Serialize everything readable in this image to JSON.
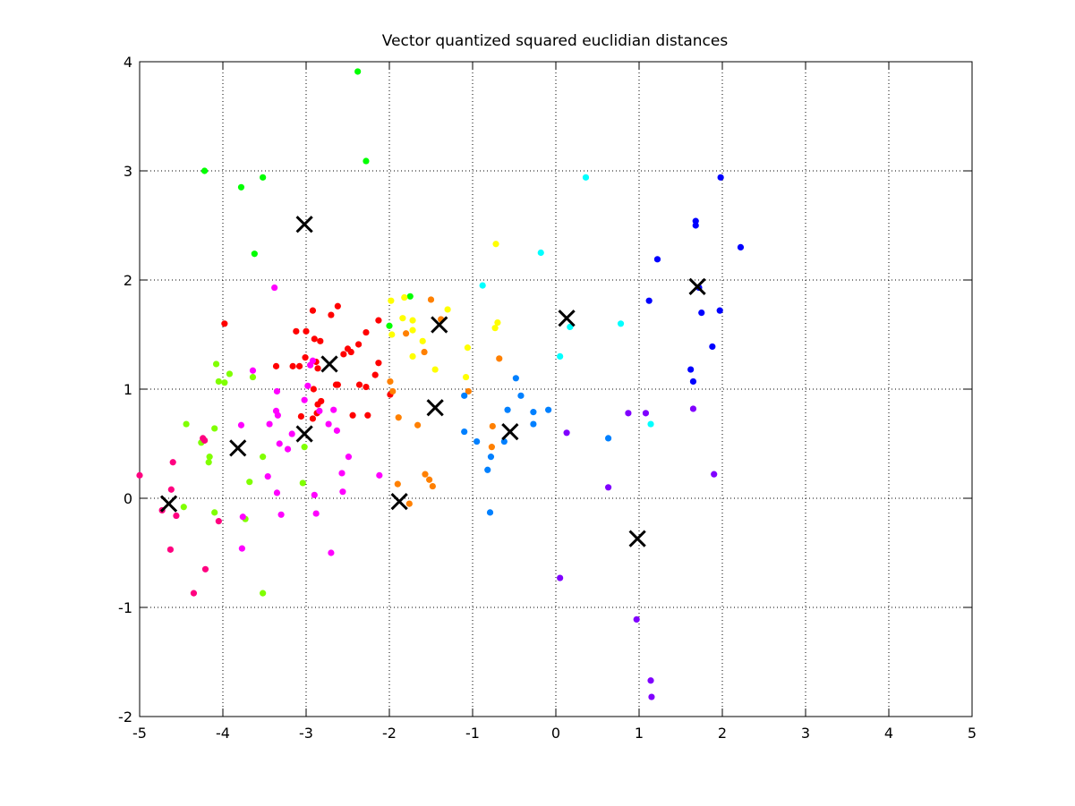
{
  "chart_data": {
    "type": "scatter",
    "title": "Vector quantized squared euclidian distances",
    "xlabel": "",
    "ylabel": "",
    "xlim": [
      -5,
      5
    ],
    "ylim": [
      -2,
      4
    ],
    "xticks": [
      "-5",
      "-4",
      "-3",
      "-2",
      "-1",
      "0",
      "1",
      "2",
      "3",
      "4",
      "5"
    ],
    "yticks": [
      "-2",
      "-1",
      "0",
      "1",
      "2",
      "3",
      "4"
    ],
    "grid": true,
    "grid_style": "dotted",
    "legend": "none",
    "series": [
      {
        "color": "#00ff00",
        "points": [
          [
            -2.38,
            3.91
          ],
          [
            -2.28,
            3.09
          ],
          [
            -4.22,
            3.0
          ],
          [
            -3.52,
            2.94
          ],
          [
            -3.78,
            2.85
          ],
          [
            -3.62,
            2.24
          ],
          [
            -1.75,
            1.85
          ],
          [
            -2.0,
            1.58
          ]
        ]
      },
      {
        "color": "#80ff00",
        "points": [
          [
            -4.08,
            1.23
          ],
          [
            -3.92,
            1.14
          ],
          [
            -4.05,
            1.07
          ],
          [
            -3.98,
            1.06
          ],
          [
            -3.64,
            1.11
          ],
          [
            -4.44,
            0.68
          ],
          [
            -4.1,
            0.64
          ],
          [
            -4.26,
            0.51
          ],
          [
            -4.22,
            0.53
          ],
          [
            -4.16,
            0.38
          ],
          [
            -4.17,
            0.33
          ],
          [
            -3.52,
            0.38
          ],
          [
            -3.68,
            0.15
          ],
          [
            -3.02,
            0.47
          ],
          [
            -3.04,
            0.14
          ],
          [
            -4.47,
            -0.08
          ],
          [
            -4.1,
            -0.13
          ],
          [
            -3.73,
            -0.19
          ],
          [
            -3.52,
            -0.87
          ]
        ]
      },
      {
        "color": "#ff0000",
        "points": [
          [
            -3.98,
            1.6
          ],
          [
            -2.92,
            1.72
          ],
          [
            -2.62,
            1.76
          ],
          [
            -2.7,
            1.68
          ],
          [
            -2.13,
            1.63
          ],
          [
            -3.12,
            1.53
          ],
          [
            -3.0,
            1.53
          ],
          [
            -2.9,
            1.46
          ],
          [
            -2.83,
            1.44
          ],
          [
            -2.28,
            1.52
          ],
          [
            -2.37,
            1.41
          ],
          [
            -2.5,
            1.37
          ],
          [
            -2.55,
            1.32
          ],
          [
            -2.46,
            1.34
          ],
          [
            -3.01,
            1.29
          ],
          [
            -2.88,
            1.25
          ],
          [
            -3.36,
            1.21
          ],
          [
            -3.16,
            1.21
          ],
          [
            -3.08,
            1.21
          ],
          [
            -2.86,
            1.19
          ],
          [
            -2.64,
            1.04
          ],
          [
            -2.62,
            1.04
          ],
          [
            -2.36,
            1.04
          ],
          [
            -2.28,
            1.02
          ],
          [
            -2.17,
            1.13
          ],
          [
            -2.13,
            1.24
          ],
          [
            -2.91,
            1.0
          ],
          [
            -2.86,
            0.86
          ],
          [
            -2.82,
            0.89
          ],
          [
            -2.87,
            0.78
          ],
          [
            -2.92,
            0.73
          ],
          [
            -3.06,
            0.75
          ],
          [
            -2.44,
            0.76
          ],
          [
            -2.26,
            0.76
          ],
          [
            -1.99,
            0.95
          ]
        ]
      },
      {
        "color": "#ff00ff",
        "points": [
          [
            -3.38,
            1.93
          ],
          [
            -3.64,
            1.17
          ],
          [
            -2.92,
            1.26
          ],
          [
            -2.95,
            1.22
          ],
          [
            -2.98,
            1.03
          ],
          [
            -3.35,
            0.98
          ],
          [
            -3.02,
            0.9
          ],
          [
            -3.36,
            0.8
          ],
          [
            -3.34,
            0.76
          ],
          [
            -2.84,
            0.8
          ],
          [
            -2.67,
            0.81
          ],
          [
            -2.73,
            0.68
          ],
          [
            -3.78,
            0.67
          ],
          [
            -3.44,
            0.68
          ],
          [
            -2.63,
            0.62
          ],
          [
            -3.17,
            0.59
          ],
          [
            -3.32,
            0.5
          ],
          [
            -3.22,
            0.45
          ],
          [
            -2.49,
            0.38
          ],
          [
            -2.57,
            0.23
          ],
          [
            -2.12,
            0.21
          ],
          [
            -3.46,
            0.2
          ],
          [
            -3.35,
            0.05
          ],
          [
            -2.9,
            0.03
          ],
          [
            -2.56,
            0.06
          ],
          [
            -3.76,
            -0.17
          ],
          [
            -3.3,
            -0.15
          ],
          [
            -2.88,
            -0.14
          ],
          [
            -3.77,
            -0.46
          ],
          [
            -2.7,
            -0.5
          ]
        ]
      },
      {
        "color": "#ff0080",
        "points": [
          [
            -5.0,
            0.21
          ],
          [
            -4.6,
            0.33
          ],
          [
            -4.62,
            0.08
          ],
          [
            -4.56,
            -0.16
          ],
          [
            -4.73,
            -0.11
          ],
          [
            -4.63,
            -0.47
          ],
          [
            -4.05,
            -0.21
          ],
          [
            -4.21,
            -0.65
          ],
          [
            -4.35,
            -0.87
          ],
          [
            -4.22,
            0.53
          ],
          [
            -4.24,
            0.55
          ]
        ]
      },
      {
        "color": "#ffff00",
        "points": [
          [
            -1.98,
            1.81
          ],
          [
            -1.82,
            1.84
          ],
          [
            -1.84,
            1.65
          ],
          [
            -1.72,
            1.63
          ],
          [
            -1.97,
            1.5
          ],
          [
            -1.72,
            1.54
          ],
          [
            -1.6,
            1.44
          ],
          [
            -1.3,
            1.73
          ],
          [
            -1.45,
            1.18
          ],
          [
            -1.72,
            1.3
          ],
          [
            -1.06,
            1.38
          ],
          [
            -1.08,
            1.11
          ],
          [
            -0.72,
            2.33
          ],
          [
            -0.7,
            1.61
          ],
          [
            -0.73,
            1.56
          ]
        ]
      },
      {
        "color": "#ff8000",
        "points": [
          [
            -1.5,
            1.82
          ],
          [
            -1.38,
            1.64
          ],
          [
            -1.58,
            1.34
          ],
          [
            -1.8,
            1.51
          ],
          [
            -1.99,
            1.07
          ],
          [
            -1.96,
            0.98
          ],
          [
            -1.05,
            0.98
          ],
          [
            -1.89,
            0.74
          ],
          [
            -1.66,
            0.67
          ],
          [
            -1.57,
            0.22
          ],
          [
            -1.52,
            0.17
          ],
          [
            -1.48,
            0.11
          ],
          [
            -1.9,
            0.13
          ],
          [
            -1.76,
            -0.05
          ],
          [
            -0.76,
            0.66
          ],
          [
            -0.77,
            0.47
          ],
          [
            -0.68,
            1.28
          ]
        ]
      },
      {
        "color": "#00ffff",
        "points": [
          [
            0.36,
            2.94
          ],
          [
            -0.18,
            2.25
          ],
          [
            -0.88,
            1.95
          ],
          [
            0.05,
            1.3
          ],
          [
            0.17,
            1.57
          ],
          [
            0.78,
            1.6
          ],
          [
            1.14,
            0.68
          ]
        ]
      },
      {
        "color": "#0080ff",
        "points": [
          [
            -1.1,
            0.94
          ],
          [
            -0.48,
            1.1
          ],
          [
            -0.42,
            0.94
          ],
          [
            -0.27,
            0.79
          ],
          [
            -0.27,
            0.68
          ],
          [
            -0.09,
            0.81
          ],
          [
            -0.58,
            0.81
          ],
          [
            -0.62,
            0.52
          ],
          [
            -0.95,
            0.52
          ],
          [
            -1.1,
            0.61
          ],
          [
            -0.78,
            0.38
          ],
          [
            -0.82,
            0.26
          ],
          [
            -0.79,
            -0.13
          ],
          [
            0.63,
            0.55
          ]
        ]
      },
      {
        "color": "#0000ff",
        "points": [
          [
            1.98,
            2.94
          ],
          [
            1.68,
            2.54
          ],
          [
            1.68,
            2.5
          ],
          [
            2.22,
            2.3
          ],
          [
            1.22,
            2.19
          ],
          [
            1.72,
            1.93
          ],
          [
            1.12,
            1.81
          ],
          [
            1.75,
            1.7
          ],
          [
            1.97,
            1.72
          ],
          [
            1.88,
            1.39
          ],
          [
            1.62,
            1.18
          ],
          [
            1.65,
            1.07
          ]
        ]
      },
      {
        "color": "#8000ff",
        "points": [
          [
            0.13,
            0.6
          ],
          [
            0.87,
            0.78
          ],
          [
            1.08,
            0.78
          ],
          [
            0.63,
            0.1
          ],
          [
            1.65,
            0.82
          ],
          [
            1.9,
            0.22
          ],
          [
            0.05,
            -0.73
          ],
          [
            0.97,
            -1.11
          ],
          [
            1.14,
            -1.67
          ],
          [
            1.15,
            -1.82
          ]
        ]
      }
    ],
    "centroids": {
      "marker": "x",
      "color": "#000000",
      "points": [
        [
          -3.02,
          2.51
        ],
        [
          -1.4,
          1.59
        ],
        [
          0.13,
          1.65
        ],
        [
          1.7,
          1.94
        ],
        [
          -2.72,
          1.23
        ],
        [
          -1.45,
          0.83
        ],
        [
          -3.02,
          0.59
        ],
        [
          -3.82,
          0.46
        ],
        [
          -0.55,
          0.61
        ],
        [
          -4.65,
          -0.05
        ],
        [
          -1.88,
          -0.03
        ],
        [
          0.98,
          -0.37
        ]
      ]
    }
  }
}
